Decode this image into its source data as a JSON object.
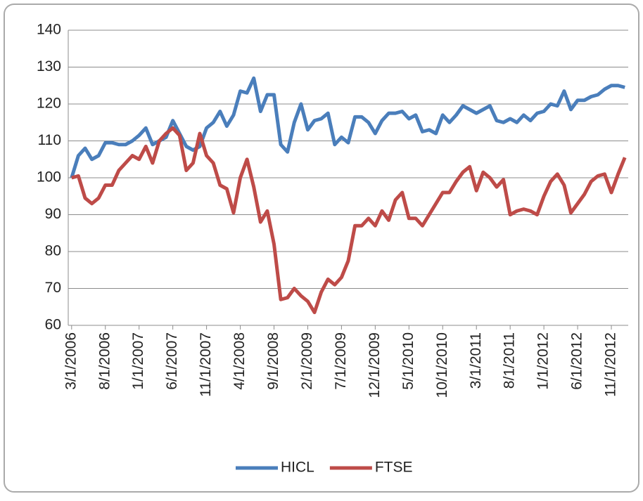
{
  "chart_data": {
    "type": "line",
    "categories": [
      "3/1/2006",
      null,
      null,
      null,
      null,
      "8/1/2006",
      null,
      null,
      null,
      null,
      "1/1/2007",
      null,
      null,
      null,
      null,
      "6/1/2007",
      null,
      null,
      null,
      null,
      "11/1/2007",
      null,
      null,
      null,
      null,
      "4/1/2008",
      null,
      null,
      null,
      null,
      "9/1/2008",
      null,
      null,
      null,
      null,
      "2/1/2009",
      null,
      null,
      null,
      null,
      "7/1/2009",
      null,
      null,
      null,
      null,
      "12/1/2009",
      null,
      null,
      null,
      null,
      "5/1/2010",
      null,
      null,
      null,
      null,
      "10/1/2010",
      null,
      null,
      null,
      null,
      "3/1/2011",
      null,
      null,
      null,
      null,
      "8/1/2011",
      null,
      null,
      null,
      null,
      "1/1/2012",
      null,
      null,
      null,
      null,
      "6/1/2012",
      null,
      null,
      null,
      null,
      "11/1/2012",
      null,
      null
    ],
    "series": [
      {
        "name": "HICL",
        "color": "#4a7ebb",
        "values": [
          100,
          106,
          108,
          105,
          106,
          109.5,
          109.5,
          109,
          109,
          110,
          111.5,
          113.5,
          109,
          110,
          111,
          115.5,
          112,
          108.5,
          107.5,
          108.5,
          113.5,
          115,
          118,
          114,
          117,
          123.5,
          123,
          127,
          118,
          122.5,
          122.5,
          109,
          107,
          115,
          120,
          113,
          115.5,
          116,
          117.5,
          109,
          111,
          109.5,
          116.5,
          116.5,
          115,
          112,
          115.5,
          117.5,
          117.5,
          118,
          116,
          117,
          112.5,
          113,
          112,
          117,
          115,
          117,
          119.5,
          118.5,
          117.5,
          118.5,
          119.5,
          115.5,
          115,
          116,
          115,
          117,
          115.5,
          117.5,
          118,
          120,
          119.5,
          123.5,
          118.5,
          121,
          121,
          122,
          122.5,
          124,
          125,
          125,
          124.5
        ]
      },
      {
        "name": "FTSE",
        "color": "#be4b48",
        "values": [
          100,
          100.5,
          94.5,
          93,
          94.5,
          98,
          98,
          102,
          104,
          106,
          105,
          108.5,
          104,
          110,
          112,
          113.5,
          111.5,
          102,
          104,
          112,
          106,
          104,
          98,
          97,
          90.5,
          100,
          105,
          97.5,
          88,
          91,
          82,
          67,
          67.5,
          70,
          68,
          66.5,
          63.5,
          69,
          72.5,
          71,
          73,
          77.5,
          87,
          87,
          89,
          87,
          91,
          88.5,
          94,
          96,
          89,
          89,
          87,
          90,
          93,
          96,
          96,
          99,
          101.5,
          103,
          96.5,
          101.5,
          100,
          97.5,
          99.5,
          90,
          91,
          91.5,
          91,
          90,
          95,
          99,
          101,
          98,
          90.5,
          93,
          95.5,
          99,
          100.5,
          101,
          96,
          101,
          105.5
        ]
      }
    ],
    "ylim": [
      60,
      140
    ],
    "yticks": [
      60,
      70,
      80,
      90,
      100,
      110,
      120,
      130,
      140
    ],
    "grid": true,
    "legend": "bottom"
  }
}
